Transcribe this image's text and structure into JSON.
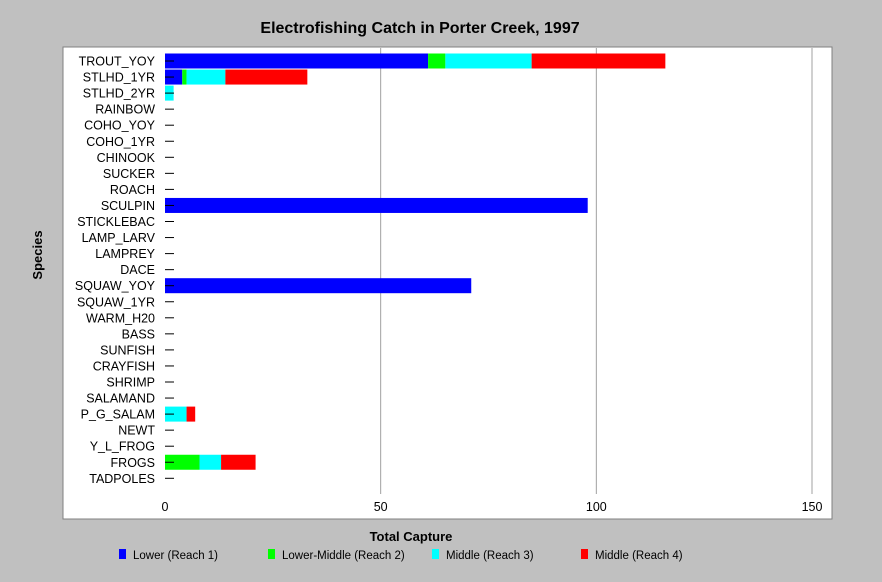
{
  "chart_data": {
    "type": "bar",
    "orientation": "horizontal",
    "stacked": true,
    "title": "Electrofishing Catch in Porter Creek, 1997",
    "xlabel": "Total Capture",
    "ylabel": "Species",
    "xlim": [
      0,
      150
    ],
    "xticks": [
      0,
      50,
      100,
      150
    ],
    "grid": true,
    "legend_position": "bottom",
    "categories": [
      "TROUT_YOY",
      "STLHD_1YR",
      "STLHD_2YR",
      "RAINBOW",
      "COHO_YOY",
      "COHO_1YR",
      "CHINOOK",
      "SUCKER",
      "ROACH",
      "SCULPIN",
      "STICKLEBAC",
      "LAMP_LARV",
      "LAMPREY",
      "DACE",
      "SQUAW_YOY",
      "SQUAW_1YR",
      "WARM_H20",
      "BASS",
      "SUNFISH",
      "CRAYFISH",
      "SHRIMP",
      "SALAMAND",
      "P_G_SALAM",
      "NEWT",
      "Y_L_FROG",
      "FROGS",
      "TADPOLES"
    ],
    "series": [
      {
        "name": "Lower (Reach 1)",
        "color": "#0000ff",
        "values": [
          61,
          4,
          0,
          0,
          0,
          0,
          0,
          0,
          0,
          98,
          0,
          0,
          0,
          0,
          71,
          0,
          0,
          0,
          0,
          0,
          0,
          0,
          0,
          0,
          0,
          0,
          0
        ]
      },
      {
        "name": "Lower-Middle (Reach 2)",
        "color": "#00ff00",
        "values": [
          4,
          1,
          0,
          0,
          0,
          0,
          0,
          0,
          0,
          0,
          0,
          0,
          0,
          0,
          0,
          0,
          0,
          0,
          0,
          0,
          0,
          0,
          0,
          0,
          0,
          8,
          0
        ]
      },
      {
        "name": "Middle (Reach 3)",
        "color": "#00ffff",
        "values": [
          20,
          9,
          2,
          0,
          0,
          0,
          0,
          0,
          0,
          0,
          0,
          0,
          0,
          0,
          0,
          0,
          0,
          0,
          0,
          0,
          0,
          0,
          5,
          0,
          0,
          5,
          0
        ]
      },
      {
        "name": "Middle (Reach 4)",
        "color": "#ff0000",
        "values": [
          31,
          19,
          0,
          0,
          0,
          0,
          0,
          0,
          0,
          0,
          0,
          0,
          0,
          0,
          0,
          0,
          0,
          0,
          0,
          0,
          0,
          0,
          2,
          0,
          0,
          8,
          0
        ]
      }
    ]
  }
}
